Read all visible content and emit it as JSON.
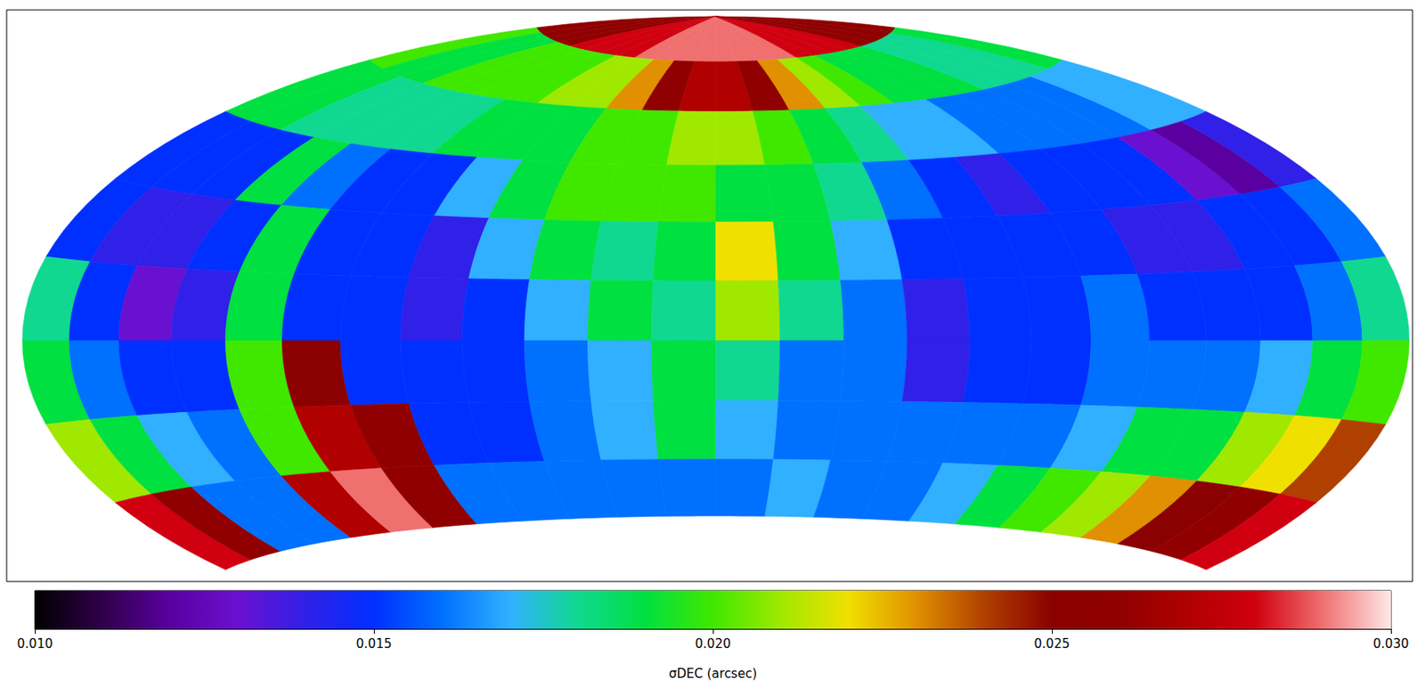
{
  "chart_data": {
    "type": "heatmap",
    "tick_labels": false,
    "x": [
      -172.5,
      -157.5,
      -142.5,
      -127.5,
      -112.5,
      -97.5,
      -82.5,
      -67.5,
      -52.5,
      -37.5,
      -22.5,
      -7.5,
      7.5,
      22.5,
      37.5,
      52.5,
      67.5,
      82.5,
      97.5,
      112.5,
      127.5,
      142.5,
      157.5,
      172.5
    ],
    "y": [
      82.5,
      67.5,
      52.5,
      37.5,
      22.5,
      7.5,
      -7.5,
      -22.5,
      -37.5
    ],
    "values": [
      [
        0.026,
        0.026,
        0.026,
        0.026,
        0.028,
        0.028,
        0.028,
        0.028,
        0.029,
        0.029,
        0.029,
        0.029,
        0.029,
        0.029,
        0.029,
        0.029,
        0.028,
        0.028,
        0.028,
        0.028,
        0.026,
        0.026,
        0.026,
        0.026
      ],
      [
        0.02,
        0.019,
        0.019,
        0.02,
        0.02,
        0.02,
        0.02,
        0.021,
        0.021,
        0.023,
        0.026,
        0.027,
        0.027,
        0.026,
        0.023,
        0.021,
        0.02,
        0.019,
        0.019,
        0.019,
        0.018,
        0.018,
        0.018,
        0.019
      ],
      [
        0.019,
        0.019,
        0.018,
        0.018,
        0.018,
        0.018,
        0.019,
        0.019,
        0.019,
        0.02,
        0.02,
        0.021,
        0.021,
        0.02,
        0.019,
        0.018,
        0.017,
        0.017,
        0.016,
        0.016,
        0.016,
        0.016,
        0.017,
        0.017
      ],
      [
        0.015,
        0.015,
        0.015,
        0.019,
        0.016,
        0.015,
        0.015,
        0.017,
        0.019,
        0.02,
        0.02,
        0.02,
        0.019,
        0.019,
        0.018,
        0.016,
        0.015,
        0.014,
        0.015,
        0.015,
        0.015,
        0.013,
        0.012,
        0.014
      ],
      [
        0.015,
        0.014,
        0.014,
        0.015,
        0.019,
        0.015,
        0.015,
        0.014,
        0.017,
        0.019,
        0.018,
        0.019,
        0.022,
        0.019,
        0.017,
        0.015,
        0.015,
        0.015,
        0.015,
        0.014,
        0.014,
        0.015,
        0.015,
        0.016
      ],
      [
        0.018,
        0.015,
        0.013,
        0.014,
        0.019,
        0.015,
        0.015,
        0.014,
        0.015,
        0.017,
        0.019,
        0.018,
        0.021,
        0.018,
        0.016,
        0.014,
        0.015,
        0.015,
        0.016,
        0.015,
        0.015,
        0.015,
        0.016,
        0.018
      ],
      [
        0.019,
        0.016,
        0.015,
        0.015,
        0.02,
        0.025,
        0.015,
        0.015,
        0.015,
        0.016,
        0.017,
        0.019,
        0.018,
        0.016,
        0.016,
        0.014,
        0.015,
        0.015,
        0.016,
        0.016,
        0.016,
        0.017,
        0.019,
        0.02
      ],
      [
        0.021,
        0.019,
        0.017,
        0.016,
        0.02,
        0.027,
        0.026,
        0.015,
        0.015,
        0.016,
        0.017,
        0.019,
        0.017,
        0.016,
        0.016,
        0.016,
        0.016,
        0.016,
        0.017,
        0.019,
        0.019,
        0.021,
        0.022,
        0.024
      ],
      [
        0.028,
        0.026,
        0.016,
        0.016,
        0.027,
        0.029,
        0.026,
        0.016,
        0.016,
        0.016,
        0.016,
        0.016,
        0.016,
        0.017,
        0.016,
        0.016,
        0.017,
        0.019,
        0.02,
        0.021,
        0.023,
        0.025,
        0.026,
        0.028
      ]
    ],
    "colorbar": {
      "range": [
        0.01,
        0.03
      ],
      "ticks": [
        {
          "value": 0.01,
          "label": "0.010"
        },
        {
          "value": 0.015,
          "label": "0.015"
        },
        {
          "value": 0.02,
          "label": "0.020"
        },
        {
          "value": 0.025,
          "label": "0.025"
        },
        {
          "value": 0.03,
          "label": "0.030"
        }
      ],
      "label": "σDEC (arcsec)"
    }
  }
}
